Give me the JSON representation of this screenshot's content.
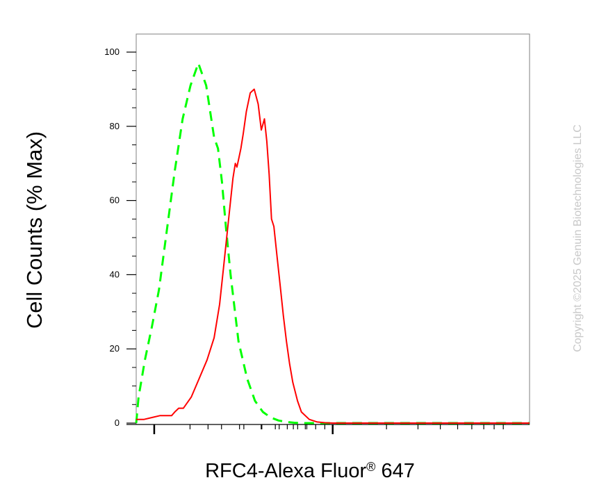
{
  "chart_data": {
    "type": "line",
    "xlabel": "RFC4-Alexa Fluor",
    "xlabel_superscript": "®",
    "xlabel_suffix": " 647",
    "ylabel": "Cell Counts (% Max)",
    "yticks": [
      "0",
      "20",
      "40",
      "60",
      "80",
      "100"
    ],
    "ylim": [
      0,
      105
    ],
    "xlim": [
      0,
      1000
    ],
    "x_scale": "log (unlabeled decades)",
    "grid": false,
    "watermark": "Copyright ©2025 Genuin Biotechnologies LLC",
    "series": [
      {
        "color": "#00ff00",
        "style": "dashed",
        "x": [
          0,
          6,
          22,
          40,
          58,
          78,
          98,
          118,
          138,
          158,
          178,
          198,
          208,
          218,
          228,
          240,
          260,
          282,
          302,
          322,
          342,
          362,
          382,
          402,
          422,
          450,
          480,
          510,
          540,
          580,
          1000
        ],
        "y": [
          0,
          7,
          17,
          26,
          36,
          52,
          68,
          82,
          91,
          97,
          91,
          77,
          74,
          65,
          53,
          40,
          22,
          12,
          6,
          3,
          1.5,
          0.7,
          0.3,
          0.1,
          0,
          0,
          0,
          0,
          0,
          0,
          0
        ]
      },
      {
        "color": "#ff0000",
        "style": "solid",
        "x": [
          0,
          20,
          40,
          60,
          78,
          90,
          98,
          108,
          120,
          140,
          160,
          180,
          198,
          212,
          222,
          232,
          240,
          246,
          252,
          256,
          260,
          266,
          272,
          280,
          290,
          300,
          310,
          318,
          326,
          332,
          338,
          344,
          350,
          358,
          366,
          374,
          382,
          390,
          398,
          410,
          420,
          440,
          460,
          480,
          500,
          520,
          540,
          580,
          620,
          700,
          800,
          1000
        ],
        "y": [
          1,
          1,
          1.5,
          2,
          2,
          2,
          3,
          4,
          4,
          7,
          12,
          17,
          23,
          32,
          42,
          52,
          60,
          66,
          70,
          69,
          71,
          74,
          78,
          84,
          89,
          90,
          86,
          79,
          82,
          76,
          67,
          55,
          53,
          45,
          37,
          29,
          22,
          16,
          11,
          6,
          3,
          1,
          0.3,
          0.1,
          0,
          0,
          0,
          0,
          0,
          0,
          0,
          0
        ]
      }
    ]
  }
}
